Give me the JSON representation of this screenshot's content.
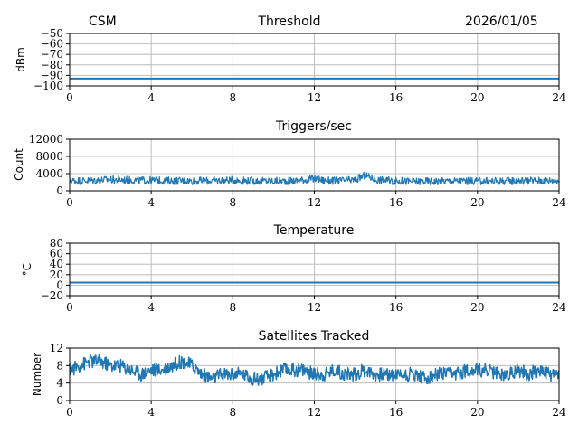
{
  "header": {
    "left": "CSM",
    "center": "Threshold",
    "right": "2026/01/05"
  },
  "colors": {
    "series": "#1f77b4",
    "grid": "#b0b0b0",
    "axes": "#000000"
  },
  "chart_data": [
    {
      "type": "line",
      "title": "Threshold",
      "ylabel": "dBm",
      "xlim": [
        0,
        24
      ],
      "ylim": [
        -100,
        -50
      ],
      "xticks": [
        0,
        4,
        8,
        12,
        16,
        20,
        24
      ],
      "yticks": [
        -100,
        -90,
        -80,
        -70,
        -60,
        -50
      ],
      "grid": true,
      "series": [
        {
          "x": [
            0,
            24
          ],
          "values": [
            -93,
            -93
          ]
        }
      ]
    },
    {
      "type": "line",
      "title": "Triggers/sec",
      "ylabel": "Count",
      "xlim": [
        0,
        24
      ],
      "ylim": [
        0,
        12000
      ],
      "xticks": [
        0,
        4,
        8,
        12,
        16,
        20,
        24
      ],
      "yticks": [
        0,
        4000,
        8000,
        12000
      ],
      "grid": true,
      "series": [
        {
          "x": [
            0,
            1,
            2,
            3,
            4,
            5,
            6,
            7,
            8,
            9,
            10,
            11,
            12,
            12.5,
            13,
            14,
            14.5,
            15,
            16,
            17,
            18,
            19,
            20,
            21,
            22,
            23,
            24
          ],
          "values": [
            2300,
            2400,
            2600,
            2500,
            2400,
            2350,
            2300,
            2350,
            2450,
            2300,
            2250,
            2300,
            2800,
            2400,
            2300,
            2500,
            3600,
            2600,
            2250,
            2200,
            2250,
            2300,
            2250,
            2300,
            2350,
            2400,
            2450
          ],
          "band": 900
        }
      ]
    },
    {
      "type": "line",
      "title": "Temperature",
      "ylabel": "°C",
      "xlim": [
        0,
        24
      ],
      "ylim": [
        -20,
        80
      ],
      "xticks": [
        0,
        4,
        8,
        12,
        16,
        20,
        24
      ],
      "yticks": [
        -20,
        0,
        20,
        40,
        60,
        80
      ],
      "grid": true,
      "series": [
        {
          "x": [
            0,
            24
          ],
          "values": [
            5,
            5
          ]
        }
      ]
    },
    {
      "type": "line",
      "title": "Satellites Tracked",
      "ylabel": "Number",
      "xlim": [
        0,
        24
      ],
      "ylim": [
        0,
        12
      ],
      "xticks": [
        0,
        4,
        8,
        12,
        16,
        20,
        24
      ],
      "yticks": [
        0,
        4,
        8,
        12
      ],
      "grid": true,
      "series": [
        {
          "x": [
            0,
            0.5,
            1,
            1.5,
            2,
            2.5,
            3,
            3.5,
            4,
            4.5,
            5,
            5.5,
            6,
            6.5,
            7,
            7.5,
            8,
            8.5,
            9,
            9.5,
            10,
            10.5,
            11,
            11.5,
            12,
            12.5,
            13,
            13.5,
            14,
            14.5,
            15,
            15.5,
            16,
            16.5,
            17,
            17.5,
            18,
            18.5,
            19,
            19.5,
            20,
            20.5,
            21,
            21.5,
            22,
            22.5,
            23,
            23.5,
            24
          ],
          "values": [
            7,
            8,
            9,
            9,
            8,
            8,
            7,
            6,
            7,
            7,
            8,
            9,
            8,
            6,
            5,
            6,
            6,
            6,
            5,
            5,
            6,
            7,
            7,
            7,
            6,
            6,
            7,
            6,
            6,
            7,
            6,
            6,
            6,
            6,
            6,
            5,
            6,
            6,
            6,
            7,
            7,
            7,
            6,
            6,
            7,
            6,
            7,
            6,
            6
          ],
          "band": 1.6
        }
      ]
    }
  ]
}
